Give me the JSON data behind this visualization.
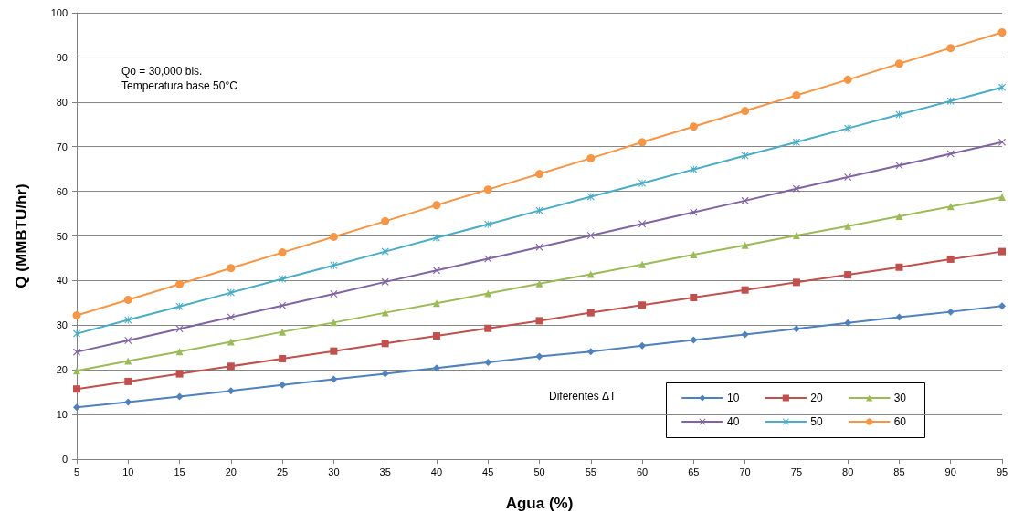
{
  "chart_data": {
    "type": "line",
    "xlabel": "Agua (%)",
    "ylabel": "Q (MMBTU/hr)",
    "legend_title": "Diferentes ΔT",
    "legend": "bottom right",
    "grid": "y",
    "annotations": [
      "Qo = 30,000 bls.",
      "Temperatura base 50°C"
    ],
    "x": [
      5,
      10,
      15,
      20,
      25,
      30,
      35,
      40,
      45,
      50,
      55,
      60,
      65,
      70,
      75,
      80,
      85,
      90,
      95
    ],
    "xlim": [
      5,
      95
    ],
    "xticks": [
      5,
      10,
      15,
      20,
      25,
      30,
      35,
      40,
      45,
      50,
      55,
      60,
      65,
      70,
      75,
      80,
      85,
      90,
      95
    ],
    "ylim": [
      0,
      100
    ],
    "yticks": [
      0,
      10,
      20,
      30,
      40,
      50,
      60,
      70,
      80,
      90,
      100
    ],
    "series": [
      {
        "name": "10",
        "color": "#4f81bd",
        "marker": "diamond",
        "values": [
          11.6,
          12.8,
          14.0,
          15.3,
          16.6,
          17.9,
          19.1,
          20.4,
          21.7,
          23.0,
          24.1,
          25.4,
          26.7,
          27.9,
          29.2,
          30.5,
          31.8,
          33.0,
          34.3
        ]
      },
      {
        "name": "20",
        "color": "#c0504d",
        "marker": "square",
        "values": [
          15.7,
          17.4,
          19.1,
          20.8,
          22.5,
          24.2,
          25.9,
          27.6,
          29.3,
          31.0,
          32.8,
          34.5,
          36.2,
          37.9,
          39.6,
          41.3,
          43.0,
          44.8,
          46.5
        ]
      },
      {
        "name": "30",
        "color": "#9bbb59",
        "marker": "triangle",
        "values": [
          19.8,
          22.0,
          24.1,
          26.3,
          28.5,
          30.6,
          32.8,
          34.9,
          37.1,
          39.3,
          41.4,
          43.6,
          45.8,
          47.9,
          50.1,
          52.2,
          54.4,
          56.6,
          58.7
        ]
      },
      {
        "name": "40",
        "color": "#8064a2",
        "marker": "cross",
        "values": [
          24.0,
          26.6,
          29.2,
          31.8,
          34.4,
          37.0,
          39.7,
          42.3,
          44.9,
          47.5,
          50.1,
          52.7,
          55.3,
          57.9,
          60.6,
          63.2,
          65.8,
          68.4,
          71.0
        ]
      },
      {
        "name": "50",
        "color": "#4bacc6",
        "marker": "star",
        "values": [
          28.1,
          31.2,
          34.2,
          37.3,
          40.4,
          43.4,
          46.5,
          49.6,
          52.6,
          55.7,
          58.8,
          61.8,
          64.9,
          68.0,
          71.0,
          74.1,
          77.2,
          80.2,
          83.3
        ]
      },
      {
        "name": "60",
        "color": "#f79646",
        "marker": "circle",
        "values": [
          32.2,
          35.7,
          39.2,
          42.8,
          46.3,
          49.8,
          53.3,
          56.9,
          60.4,
          63.9,
          67.4,
          71.0,
          74.5,
          78.0,
          81.5,
          85.0,
          88.6,
          92.1,
          95.6
        ]
      }
    ]
  }
}
